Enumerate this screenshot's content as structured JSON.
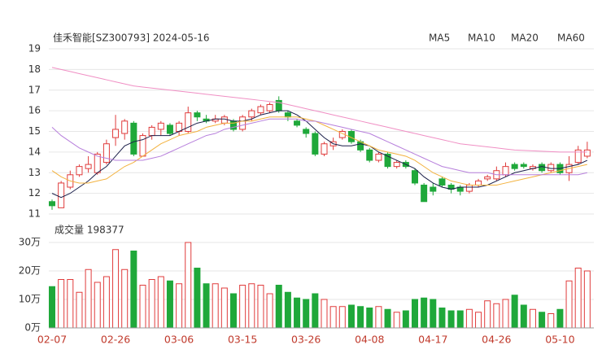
{
  "chart_data": [
    {
      "type": "candlestick",
      "title": "佳禾智能[SZ300793] 2024-05-16",
      "open": [
        11.6,
        11.3,
        12.3,
        12.9,
        13.2,
        13.0,
        13.5,
        14.7,
        14.9,
        15.4,
        13.8,
        14.8,
        15.1,
        15.3,
        15.0,
        15.0,
        15.9,
        15.6,
        15.5,
        15.4,
        15.5,
        15.1,
        15.7,
        15.9,
        16.0,
        16.5,
        15.9,
        15.5,
        15.1,
        14.9,
        13.9,
        14.3,
        14.7,
        15.0,
        14.5,
        14.1,
        13.6,
        13.9,
        13.3,
        13.5,
        13.1,
        12.4,
        12.3,
        12.7,
        12.4,
        12.3,
        12.1,
        12.4,
        12.7,
        12.7,
        12.9,
        13.4,
        13.4,
        13.2,
        13.4,
        13.1,
        13.4,
        13.0,
        13.5,
        13.8
      ],
      "high": [
        11.7,
        12.6,
        13.1,
        13.4,
        13.8,
        14.0,
        14.6,
        15.8,
        15.6,
        15.5,
        14.9,
        15.3,
        15.5,
        15.4,
        15.5,
        16.2,
        16.0,
        15.8,
        15.8,
        15.8,
        15.6,
        15.8,
        16.1,
        16.3,
        16.4,
        16.7,
        16.0,
        15.6,
        15.2,
        15.0,
        14.5,
        14.7,
        15.1,
        15.1,
        14.6,
        14.2,
        14.0,
        14.0,
        13.6,
        13.6,
        13.2,
        12.5,
        12.5,
        12.8,
        12.5,
        12.4,
        12.5,
        12.7,
        12.9,
        13.3,
        13.5,
        13.5,
        13.5,
        13.4,
        13.5,
        13.5,
        13.5,
        13.8,
        14.3,
        14.5
      ],
      "low": [
        11.2,
        11.3,
        12.2,
        12.8,
        13.0,
        12.9,
        13.4,
        14.3,
        14.6,
        13.8,
        13.8,
        14.6,
        14.8,
        14.8,
        14.8,
        14.9,
        15.5,
        15.4,
        15.4,
        15.3,
        15.0,
        15.0,
        15.5,
        15.8,
        15.9,
        15.9,
        15.5,
        15.2,
        14.7,
        13.8,
        13.8,
        14.1,
        14.6,
        14.4,
        14.0,
        13.5,
        13.5,
        13.2,
        13.2,
        13.2,
        12.4,
        11.6,
        11.9,
        12.3,
        12.0,
        11.9,
        12.0,
        12.3,
        12.6,
        12.6,
        12.8,
        13.1,
        13.2,
        13.1,
        13.0,
        13.0,
        12.9,
        12.6,
        13.4,
        13.7
      ],
      "close": [
        11.4,
        12.5,
        12.9,
        13.3,
        13.4,
        13.9,
        14.4,
        15.1,
        15.5,
        13.9,
        14.8,
        15.2,
        15.4,
        14.9,
        15.4,
        15.9,
        15.7,
        15.5,
        15.6,
        15.7,
        15.1,
        15.7,
        16.0,
        16.2,
        16.3,
        16.0,
        15.7,
        15.3,
        14.9,
        13.9,
        14.4,
        14.5,
        15.0,
        14.5,
        14.1,
        13.6,
        13.9,
        13.3,
        13.5,
        13.3,
        12.5,
        11.6,
        12.1,
        12.4,
        12.2,
        12.1,
        12.4,
        12.6,
        12.8,
        13.1,
        13.3,
        13.2,
        13.3,
        13.3,
        13.1,
        13.4,
        13.0,
        13.4,
        14.1,
        14.1
      ],
      "up_color": "#e03c3c",
      "down_color": "#1fa83a",
      "series": [
        {
          "name": "MA5",
          "color": "#1b1f4a",
          "values": [
            12.0,
            11.8,
            12.0,
            12.3,
            12.6,
            13.0,
            13.3,
            13.8,
            14.3,
            14.5,
            14.6,
            14.8,
            14.8,
            14.8,
            15.0,
            15.2,
            15.4,
            15.5,
            15.6,
            15.6,
            15.5,
            15.5,
            15.6,
            15.8,
            15.9,
            16.0,
            16.0,
            15.8,
            15.5,
            15.1,
            14.7,
            14.4,
            14.3,
            14.3,
            14.4,
            14.3,
            14.0,
            13.8,
            13.6,
            13.4,
            13.2,
            12.8,
            12.5,
            12.3,
            12.2,
            12.3,
            12.3,
            12.3,
            12.4,
            12.6,
            12.8,
            13.0,
            13.1,
            13.2,
            13.3,
            13.2,
            13.2,
            13.3,
            13.4,
            13.6
          ]
        },
        {
          "name": "MA10",
          "color": "#f3b23e",
          "values": [
            13.1,
            12.8,
            12.6,
            12.5,
            12.5,
            12.6,
            12.7,
            13.0,
            13.3,
            13.5,
            13.8,
            14.1,
            14.4,
            14.6,
            14.8,
            14.9,
            15.0,
            15.2,
            15.3,
            15.4,
            15.4,
            15.5,
            15.5,
            15.6,
            15.7,
            15.7,
            15.7,
            15.7,
            15.6,
            15.5,
            15.3,
            15.1,
            14.9,
            14.7,
            14.5,
            14.3,
            14.1,
            14.0,
            13.9,
            13.8,
            13.6,
            13.3,
            13.0,
            12.8,
            12.6,
            12.5,
            12.4,
            12.4,
            12.4,
            12.4,
            12.5,
            12.6,
            12.7,
            12.8,
            12.9,
            13.0,
            13.1,
            13.2,
            13.3,
            13.4
          ]
        },
        {
          "name": "MA20",
          "color": "#b77fdc",
          "values": [
            15.2,
            14.8,
            14.5,
            14.2,
            14.0,
            13.8,
            13.7,
            13.6,
            13.6,
            13.6,
            13.6,
            13.7,
            13.8,
            14.0,
            14.2,
            14.4,
            14.6,
            14.8,
            14.9,
            15.1,
            15.2,
            15.3,
            15.4,
            15.5,
            15.6,
            15.6,
            15.6,
            15.6,
            15.5,
            15.5,
            15.4,
            15.3,
            15.2,
            15.1,
            15.0,
            14.9,
            14.7,
            14.5,
            14.3,
            14.1,
            13.9,
            13.7,
            13.5,
            13.3,
            13.2,
            13.1,
            13.0,
            13.0,
            13.0,
            12.9,
            12.9,
            12.9,
            12.9,
            12.9,
            12.9,
            12.9,
            12.9,
            12.9,
            12.9,
            13.0
          ]
        },
        {
          "name": "MA60",
          "color": "#f08fc4",
          "values": [
            18.1,
            18.0,
            17.9,
            17.8,
            17.7,
            17.6,
            17.5,
            17.4,
            17.3,
            17.2,
            17.15,
            17.1,
            17.05,
            17.0,
            16.95,
            16.9,
            16.85,
            16.8,
            16.75,
            16.7,
            16.65,
            16.6,
            16.55,
            16.5,
            16.45,
            16.4,
            16.3,
            16.2,
            16.1,
            16.0,
            15.9,
            15.8,
            15.7,
            15.6,
            15.5,
            15.4,
            15.3,
            15.2,
            15.1,
            15.0,
            14.9,
            14.8,
            14.7,
            14.6,
            14.5,
            14.4,
            14.35,
            14.3,
            14.25,
            14.2,
            14.15,
            14.1,
            14.08,
            14.06,
            14.04,
            14.02,
            14.0,
            14.0,
            14.0,
            14.0
          ]
        }
      ],
      "ylim": [
        11,
        19
      ],
      "yticks": [
        11,
        12,
        13,
        14,
        15,
        16,
        17,
        18,
        19
      ],
      "grid": true,
      "legend": "top-right"
    },
    {
      "type": "bar",
      "title": "成交量 198377",
      "categories": [
        "02-07",
        null,
        null,
        null,
        null,
        null,
        null,
        "02-26",
        null,
        null,
        null,
        null,
        null,
        null,
        "03-06",
        null,
        null,
        null,
        null,
        null,
        null,
        "03-15",
        null,
        null,
        null,
        null,
        null,
        null,
        "03-26",
        null,
        null,
        null,
        null,
        null,
        null,
        "04-08",
        null,
        null,
        null,
        null,
        null,
        null,
        "04-17",
        null,
        null,
        null,
        null,
        null,
        null,
        "04-26",
        null,
        null,
        null,
        null,
        null,
        null,
        "05-10",
        null,
        null,
        null
      ],
      "values": [
        14.5,
        17,
        17,
        12.5,
        20.5,
        16,
        18,
        27.5,
        20.5,
        27,
        15,
        17,
        18,
        16.5,
        15.5,
        30,
        21,
        15.5,
        15.5,
        14,
        12,
        15,
        15.5,
        15,
        12,
        15,
        12.5,
        10.5,
        10,
        12,
        10,
        7.5,
        7.5,
        8,
        7.5,
        7,
        7.5,
        6.5,
        5.5,
        6,
        10,
        10.5,
        10,
        7,
        6,
        6,
        6.5,
        5.5,
        9.5,
        8.5,
        10,
        11.5,
        8,
        6.5,
        5.5,
        5,
        6.5,
        16.5,
        21,
        20
      ],
      "ylim": [
        0,
        30
      ],
      "yticks": [
        {
          "value": 0,
          "label": "0万"
        },
        {
          "value": 10,
          "label": "10万"
        },
        {
          "value": 20,
          "label": "20万"
        },
        {
          "value": 30,
          "label": "30万"
        }
      ],
      "grid": true
    }
  ]
}
